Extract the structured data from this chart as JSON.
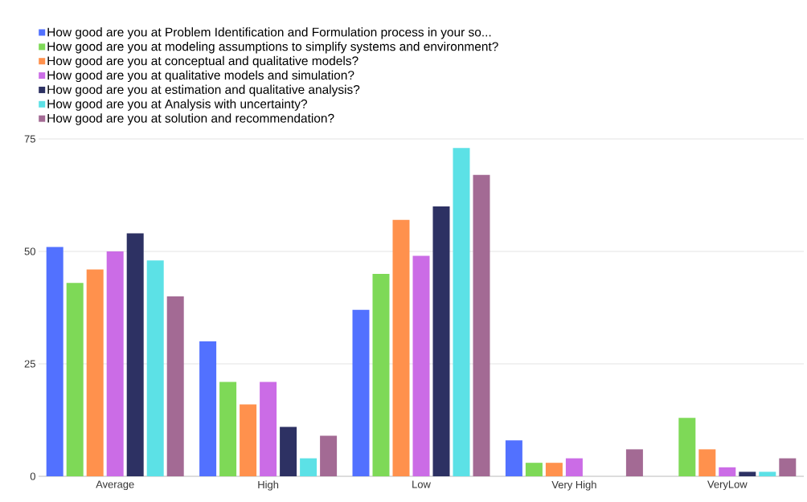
{
  "chart_data": {
    "type": "bar",
    "categories": [
      "Average",
      "High",
      "Low",
      "Very High",
      "VeryLow"
    ],
    "series": [
      {
        "name": "How good are you at Problem Identification and Formulation process in your so...",
        "color": "#5271ff",
        "values": [
          51,
          30,
          37,
          8,
          0
        ]
      },
      {
        "name": "How good are you at modeling assumptions to simplify systems and environment?",
        "color": "#7ed957",
        "values": [
          43,
          21,
          45,
          3,
          13
        ]
      },
      {
        "name": "How good are you at conceptual and qualitative models?",
        "color": "#ff914d",
        "values": [
          46,
          16,
          57,
          3,
          6
        ]
      },
      {
        "name": "How good are you at qualitative models and simulation?",
        "color": "#cb6ce6",
        "values": [
          50,
          21,
          49,
          4,
          2
        ]
      },
      {
        "name": "How good are you at estimation and qualitative analysis?",
        "color": "#2d3163",
        "values": [
          54,
          11,
          60,
          0,
          1
        ]
      },
      {
        "name": "How good are you at Analysis with uncertainty?",
        "color": "#5ce1e6",
        "values": [
          48,
          4,
          73,
          0,
          1
        ]
      },
      {
        "name": "How good are you at solution and recommendation?",
        "color": "#a36a94",
        "values": [
          40,
          9,
          67,
          6,
          4
        ]
      }
    ],
    "ylim": [
      0,
      75
    ],
    "yticks": [
      0,
      25,
      50,
      75
    ],
    "grid": "y",
    "legend": "top left"
  }
}
